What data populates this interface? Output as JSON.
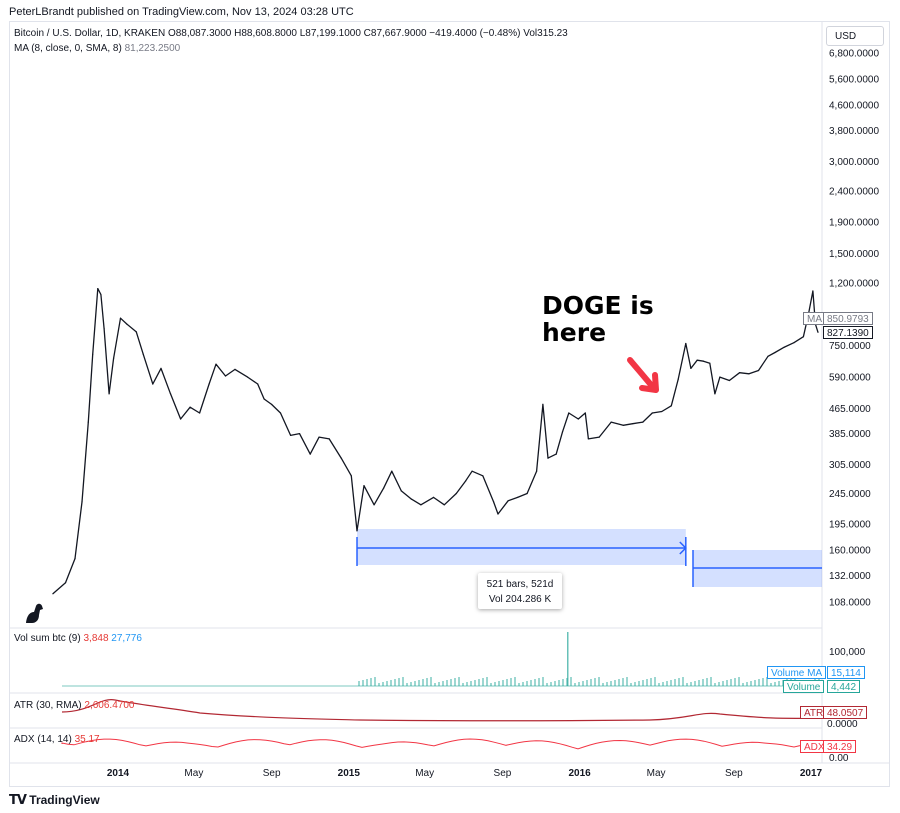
{
  "header": {
    "publisher_line": "PeterLBrandt published on TradingView.com, Nov 13, 2024 03:28 UTC"
  },
  "legend": {
    "symbol_line": "Bitcoin / U.S. Dollar, 1D, KRAKEN  O88,087.3000  H88,608.8000  L87,199.1000  C87,667.9000  −419.4000 (−0.48%)  Vol315.23",
    "ma_label": "MA (8, close, 0, SMA, 8)",
    "ma_value": "81,223.2500",
    "vol_label": "Vol sum btc (9)",
    "vol_value_a": "3,848",
    "vol_value_b": "27,776",
    "atr_label": "ATR (30, RMA)",
    "atr_value": "2,606.4700",
    "adx_label": "ADX (14, 14)",
    "adx_value": "35.17"
  },
  "currency_button": "USD",
  "annotation": {
    "text": "DOGE is here",
    "arrow_color": "#f23645"
  },
  "measure_tooltip": {
    "bars": "521 bars, 521d",
    "vol": "Vol 204.286 K"
  },
  "price_tags": {
    "ma_label": "MA",
    "ma_value": "850.9793",
    "close_value": "827.1390",
    "volume_ma_label": "Volume MA",
    "volume_ma_value": "15,114",
    "volume_label": "Volume",
    "volume_value": "4,442",
    "atr_label": "ATR",
    "atr_value": "48.0507",
    "atr_zero": "0.0000",
    "adx_label": "ADX",
    "adx_value": "34.29",
    "adx_zero": "0.00"
  },
  "vol_axis_tick": "100,000",
  "footer": {
    "brand": "TradingView"
  },
  "colors": {
    "price_line": "#131722",
    "measure_fill": "#2962ff",
    "atr_line": "#b22833",
    "adx_line": "#f23645",
    "volume_bars": "#26a69a",
    "volume_ma": "#2196f3"
  },
  "chart_data": {
    "type": "line",
    "title": "Bitcoin / U.S. Dollar, 1D, KRAKEN",
    "scale": "log",
    "y_ticks": [
      "6,800.0000",
      "5,600.0000",
      "4,600.0000",
      "3,800.0000",
      "3,000.0000",
      "2,400.0000",
      "1,900.0000",
      "1,500.0000",
      "1,200.0000",
      "750.0000",
      "590.0000",
      "465.0000",
      "385.0000",
      "305.0000",
      "245.0000",
      "195.0000",
      "160.0000",
      "132.0000",
      "108.0000"
    ],
    "x_ticks": [
      "2014",
      "May",
      "Sep",
      "2015",
      "May",
      "Sep",
      "2016",
      "May",
      "Sep",
      "2017"
    ],
    "series": [
      {
        "name": "Bitcoin / U.S. Dollar",
        "points": [
          [
            "2013-09-20",
            115
          ],
          [
            "2013-10-10",
            125
          ],
          [
            "2013-10-25",
            150
          ],
          [
            "2013-11-05",
            230
          ],
          [
            "2013-11-15",
            420
          ],
          [
            "2013-11-22",
            700
          ],
          [
            "2013-11-30",
            1150
          ],
          [
            "2013-12-05",
            1100
          ],
          [
            "2013-12-10",
            850
          ],
          [
            "2013-12-18",
            520
          ],
          [
            "2013-12-25",
            680
          ],
          [
            "2014-01-05",
            920
          ],
          [
            "2014-01-15",
            880
          ],
          [
            "2014-01-30",
            830
          ],
          [
            "2014-02-10",
            700
          ],
          [
            "2014-02-25",
            560
          ],
          [
            "2014-03-10",
            630
          ],
          [
            "2014-03-25",
            520
          ],
          [
            "2014-04-10",
            430
          ],
          [
            "2014-04-25",
            470
          ],
          [
            "2014-05-10",
            450
          ],
          [
            "2014-05-25",
            560
          ],
          [
            "2014-06-05",
            650
          ],
          [
            "2014-06-20",
            595
          ],
          [
            "2014-07-05",
            625
          ],
          [
            "2014-07-25",
            590
          ],
          [
            "2014-08-10",
            560
          ],
          [
            "2014-08-20",
            500
          ],
          [
            "2014-09-01",
            480
          ],
          [
            "2014-09-15",
            450
          ],
          [
            "2014-10-01",
            380
          ],
          [
            "2014-10-15",
            385
          ],
          [
            "2014-11-01",
            330
          ],
          [
            "2014-11-15",
            375
          ],
          [
            "2014-12-01",
            370
          ],
          [
            "2014-12-20",
            320
          ],
          [
            "2015-01-05",
            280
          ],
          [
            "2015-01-14",
            185
          ],
          [
            "2015-01-25",
            260
          ],
          [
            "2015-02-10",
            225
          ],
          [
            "2015-02-25",
            255
          ],
          [
            "2015-03-10",
            290
          ],
          [
            "2015-03-25",
            250
          ],
          [
            "2015-04-10",
            235
          ],
          [
            "2015-04-25",
            225
          ],
          [
            "2015-05-15",
            238
          ],
          [
            "2015-06-01",
            225
          ],
          [
            "2015-06-20",
            245
          ],
          [
            "2015-07-05",
            270
          ],
          [
            "2015-07-15",
            290
          ],
          [
            "2015-08-01",
            280
          ],
          [
            "2015-08-18",
            230
          ],
          [
            "2015-08-25",
            210
          ],
          [
            "2015-09-10",
            232
          ],
          [
            "2015-09-25",
            238
          ],
          [
            "2015-10-10",
            245
          ],
          [
            "2015-10-25",
            290
          ],
          [
            "2015-11-04",
            480
          ],
          [
            "2015-11-12",
            320
          ],
          [
            "2015-11-25",
            330
          ],
          [
            "2015-12-05",
            390
          ],
          [
            "2015-12-15",
            450
          ],
          [
            "2015-12-30",
            430
          ],
          [
            "2016-01-10",
            450
          ],
          [
            "2016-01-15",
            370
          ],
          [
            "2016-02-01",
            375
          ],
          [
            "2016-02-20",
            420
          ],
          [
            "2016-03-10",
            410
          ],
          [
            "2016-03-25",
            415
          ],
          [
            "2016-04-10",
            420
          ],
          [
            "2016-04-25",
            450
          ],
          [
            "2016-05-10",
            455
          ],
          [
            "2016-05-25",
            475
          ],
          [
            "2016-06-05",
            580
          ],
          [
            "2016-06-17",
            760
          ],
          [
            "2016-06-25",
            630
          ],
          [
            "2016-07-05",
            670
          ],
          [
            "2016-07-15",
            665
          ],
          [
            "2016-07-25",
            655
          ],
          [
            "2016-08-02",
            520
          ],
          [
            "2016-08-10",
            590
          ],
          [
            "2016-08-25",
            575
          ],
          [
            "2016-09-10",
            610
          ],
          [
            "2016-09-25",
            605
          ],
          [
            "2016-10-10",
            620
          ],
          [
            "2016-10-25",
            690
          ],
          [
            "2016-11-05",
            710
          ],
          [
            "2016-11-20",
            740
          ],
          [
            "2016-12-05",
            765
          ],
          [
            "2016-12-20",
            800
          ],
          [
            "2016-12-28",
            950
          ],
          [
            "2017-01-04",
            1130
          ],
          [
            "2017-01-08",
            880
          ],
          [
            "2017-01-12",
            827
          ]
        ]
      }
    ],
    "measure_range": {
      "start": "2015-01-14",
      "end": "2016-06-17",
      "bars": 521
    }
  }
}
